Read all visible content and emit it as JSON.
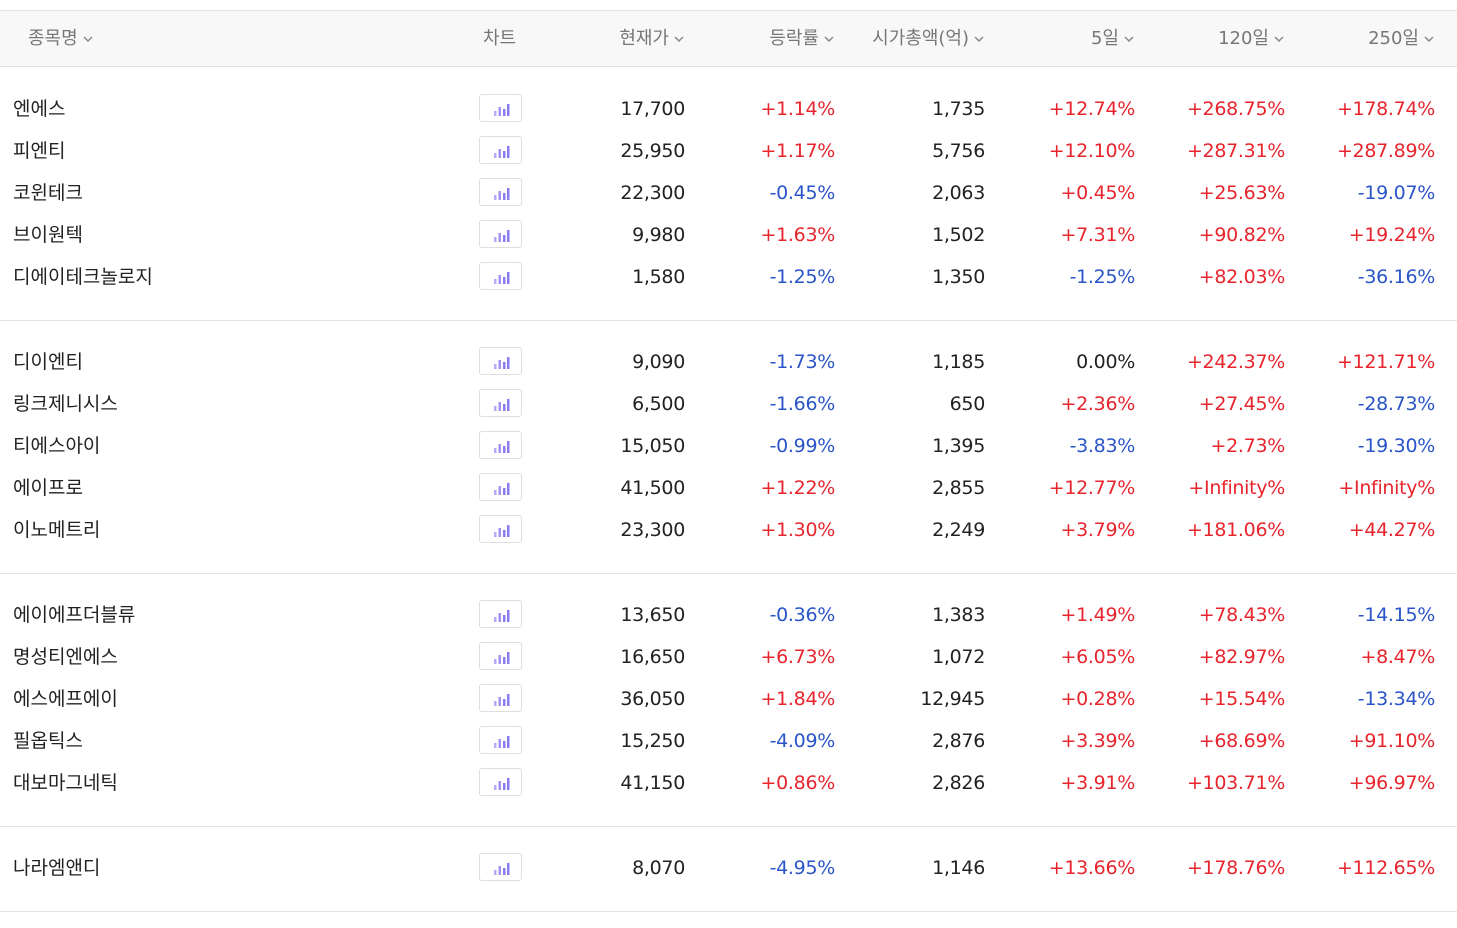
{
  "header": {
    "name": "종목명",
    "chart": "차트",
    "price": "현재가",
    "change": "등락률",
    "marketcap": "시가총액(억)",
    "d5": "5일",
    "d120": "120일",
    "d250": "250일"
  },
  "icons": {
    "sort": "chevron-down-icon",
    "chart": "bar-chart-icon"
  },
  "colors": {
    "up": "#e8242d",
    "down": "#2a55c9",
    "icon": "#8a7cf0"
  },
  "groups": [
    [
      {
        "name": "엔에스",
        "price": "17,700",
        "change": "+1.14%",
        "cap": "1,735",
        "d5": "+12.74%",
        "d120": "+268.75%",
        "d250": "+178.74%"
      },
      {
        "name": "피엔티",
        "price": "25,950",
        "change": "+1.17%",
        "cap": "5,756",
        "d5": "+12.10%",
        "d120": "+287.31%",
        "d250": "+287.89%"
      },
      {
        "name": "코윈테크",
        "price": "22,300",
        "change": "-0.45%",
        "cap": "2,063",
        "d5": "+0.45%",
        "d120": "+25.63%",
        "d250": "-19.07%"
      },
      {
        "name": "브이원텍",
        "price": "9,980",
        "change": "+1.63%",
        "cap": "1,502",
        "d5": "+7.31%",
        "d120": "+90.82%",
        "d250": "+19.24%"
      },
      {
        "name": "디에이테크놀로지",
        "price": "1,580",
        "change": "-1.25%",
        "cap": "1,350",
        "d5": "-1.25%",
        "d120": "+82.03%",
        "d250": "-36.16%"
      }
    ],
    [
      {
        "name": "디이엔티",
        "price": "9,090",
        "change": "-1.73%",
        "cap": "1,185",
        "d5": "0.00%",
        "d120": "+242.37%",
        "d250": "+121.71%"
      },
      {
        "name": "링크제니시스",
        "price": "6,500",
        "change": "-1.66%",
        "cap": "650",
        "d5": "+2.36%",
        "d120": "+27.45%",
        "d250": "-28.73%"
      },
      {
        "name": "티에스아이",
        "price": "15,050",
        "change": "-0.99%",
        "cap": "1,395",
        "d5": "-3.83%",
        "d120": "+2.73%",
        "d250": "-19.30%"
      },
      {
        "name": "에이프로",
        "price": "41,500",
        "change": "+1.22%",
        "cap": "2,855",
        "d5": "+12.77%",
        "d120": "+Infinity%",
        "d250": "+Infinity%"
      },
      {
        "name": "이노메트리",
        "price": "23,300",
        "change": "+1.30%",
        "cap": "2,249",
        "d5": "+3.79%",
        "d120": "+181.06%",
        "d250": "+44.27%"
      }
    ],
    [
      {
        "name": "에이에프더블류",
        "price": "13,650",
        "change": "-0.36%",
        "cap": "1,383",
        "d5": "+1.49%",
        "d120": "+78.43%",
        "d250": "-14.15%"
      },
      {
        "name": "명성티엔에스",
        "price": "16,650",
        "change": "+6.73%",
        "cap": "1,072",
        "d5": "+6.05%",
        "d120": "+82.97%",
        "d250": "+8.47%"
      },
      {
        "name": "에스에프에이",
        "price": "36,050",
        "change": "+1.84%",
        "cap": "12,945",
        "d5": "+0.28%",
        "d120": "+15.54%",
        "d250": "-13.34%"
      },
      {
        "name": "필옵틱스",
        "price": "15,250",
        "change": "-4.09%",
        "cap": "2,876",
        "d5": "+3.39%",
        "d120": "+68.69%",
        "d250": "+91.10%"
      },
      {
        "name": "대보마그네틱",
        "price": "41,150",
        "change": "+0.86%",
        "cap": "2,826",
        "d5": "+3.91%",
        "d120": "+103.71%",
        "d250": "+96.97%"
      }
    ],
    [
      {
        "name": "나라엠앤디",
        "price": "8,070",
        "change": "-4.95%",
        "cap": "1,146",
        "d5": "+13.66%",
        "d120": "+178.76%",
        "d250": "+112.65%"
      }
    ]
  ]
}
